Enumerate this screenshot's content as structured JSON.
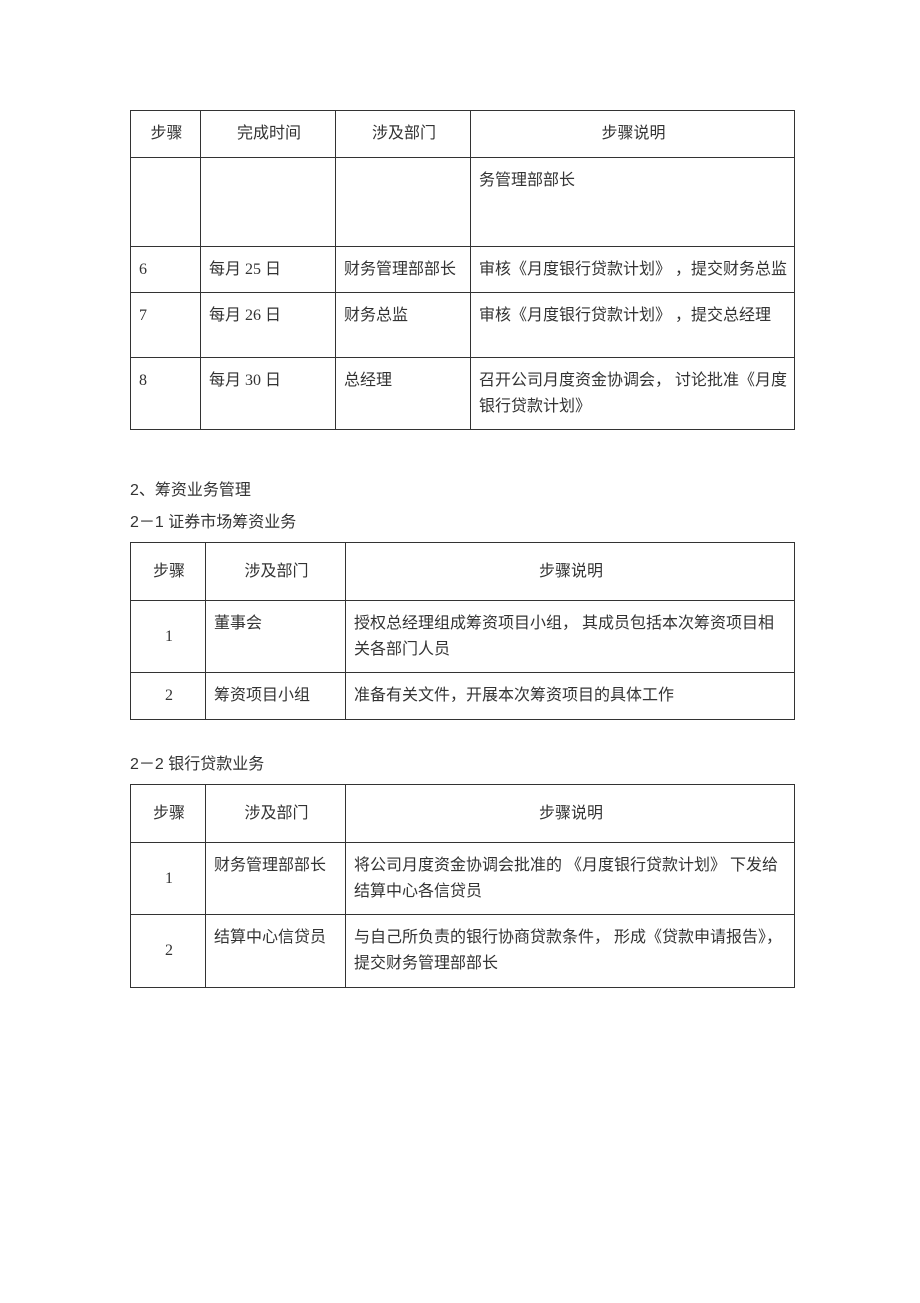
{
  "table1": {
    "headers": {
      "step": "步骤",
      "time": "完成时间",
      "dept": "涉及部门",
      "desc": "步骤说明"
    },
    "rows": [
      {
        "step": "",
        "time": "",
        "dept": "",
        "desc": "务管理部部长"
      },
      {
        "step": "6",
        "time": "每月 25 日",
        "dept": "财务管理部部长",
        "desc": "审核《月度银行贷款计划》 ，提交财务总监"
      },
      {
        "step": "7",
        "time": "每月 26 日",
        "dept": "财务总监",
        "desc": "审核《月度银行贷款计划》 ，提交总经理"
      },
      {
        "step": "8",
        "time": "每月 30 日",
        "dept": "总经理",
        "desc": "召开公司月度资金协调会， 讨论批准《月度银行贷款计划》"
      }
    ]
  },
  "section2": {
    "title": "2、筹资业务管理",
    "sub1_title": "2－1 证券市场筹资业务",
    "sub2_title": "2－2 银行贷款业务",
    "headers": {
      "step": "步骤",
      "dept": "涉及部门",
      "desc": "步骤说明"
    },
    "table_2_1": [
      {
        "step": "1",
        "dept": "董事会",
        "desc": "授权总经理组成筹资项目小组， 其成员包括本次筹资项目相关各部门人员"
      },
      {
        "step": "2",
        "dept": "筹资项目小组",
        "desc": "准备有关文件，开展本次筹资项目的具体工作"
      }
    ],
    "table_2_2": [
      {
        "step": "1",
        "dept": "财务管理部部长",
        "desc": "将公司月度资金协调会批准的 《月度银行贷款计划》 下发给结算中心各信贷员"
      },
      {
        "step": "2",
        "dept": "结算中心信贷员",
        "desc": "与自己所负责的银行协商贷款条件， 形成《贷款申请报告》，提交财务管理部部长"
      }
    ]
  }
}
